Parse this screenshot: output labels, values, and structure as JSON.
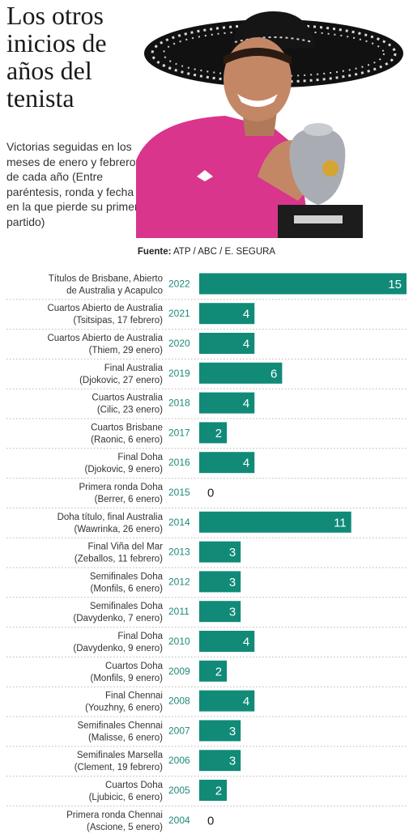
{
  "header": {
    "title": "Los otros inicios de años del tenista",
    "subtitle": "Victorias seguidas en los meses de enero y febrero de cada año (Entre paréntesis, ronda y fecha en la que pierde su primer partido)",
    "source_label": "Fuente:",
    "source_text": "ATP / ABC / E. SEGURA"
  },
  "colors": {
    "bar": "#118a78",
    "year": "#1d8a78",
    "divider": "#b5b5b5"
  },
  "chart_data": {
    "type": "bar",
    "orientation": "horizontal",
    "title": "",
    "xlabel": "",
    "ylabel": "",
    "xlim": [
      0,
      15
    ],
    "rows": [
      {
        "year": "2022",
        "line1": "Títulos de Brisbane, Abierto",
        "line2": "de Australia y Acapulco",
        "value": 15
      },
      {
        "year": "2021",
        "line1": "Cuartos Abierto de Australia",
        "line2": "(Tsitsipas, 17 febrero)",
        "value": 4
      },
      {
        "year": "2020",
        "line1": "Cuartos Abierto de Australia",
        "line2": "(Thiem, 29 enero)",
        "value": 4
      },
      {
        "year": "2019",
        "line1": "Final Australia",
        "line2": "(Djokovic, 27 enero)",
        "value": 6
      },
      {
        "year": "2018",
        "line1": "Cuartos Australia",
        "line2": "(Cilic, 23 enero)",
        "value": 4
      },
      {
        "year": "2017",
        "line1": "Cuartos Brisbane",
        "line2": "(Raonic, 6 enero)",
        "value": 2
      },
      {
        "year": "2016",
        "line1": "Final Doha",
        "line2": "(Djokovic, 9 enero)",
        "value": 4
      },
      {
        "year": "2015",
        "line1": "Primera ronda Doha",
        "line2": "(Berrer, 6 enero)",
        "value": 0
      },
      {
        "year": "2014",
        "line1": "Doha título, final Australia",
        "line2": "(Wawrinka, 26 enero)",
        "value": 11
      },
      {
        "year": "2013",
        "line1": "Final Viña del Mar",
        "line2": "(Zeballos, 11 febrero)",
        "value": 3
      },
      {
        "year": "2012",
        "line1": "Semifinales Doha",
        "line2": "(Monfils, 6 enero)",
        "value": 3
      },
      {
        "year": "2011",
        "line1": "Semifinales Doha",
        "line2": "(Davydenko, 7 enero)",
        "value": 3
      },
      {
        "year": "2010",
        "line1": "Final Doha",
        "line2": "(Davydenko, 9 enero)",
        "value": 4
      },
      {
        "year": "2009",
        "line1": "Cuartos Doha",
        "line2": "(Monfils, 9 enero)",
        "value": 2
      },
      {
        "year": "2008",
        "line1": "Final Chennai",
        "line2": "(Youzhny, 6 enero)",
        "value": 4
      },
      {
        "year": "2007",
        "line1": "Semifinales Chennai",
        "line2": "(Malisse, 6 enero)",
        "value": 3
      },
      {
        "year": "2006",
        "line1": "Semifinales Marsella",
        "line2": "(Clement, 19 febrero)",
        "value": 3
      },
      {
        "year": "2005",
        "line1": "Cuartos Doha",
        "line2": "(Ljubicic, 6 enero)",
        "value": 2
      },
      {
        "year": "2004",
        "line1": "Primera ronda Chennai",
        "line2": "(Ascione, 5 enero)",
        "value": 0
      }
    ]
  }
}
